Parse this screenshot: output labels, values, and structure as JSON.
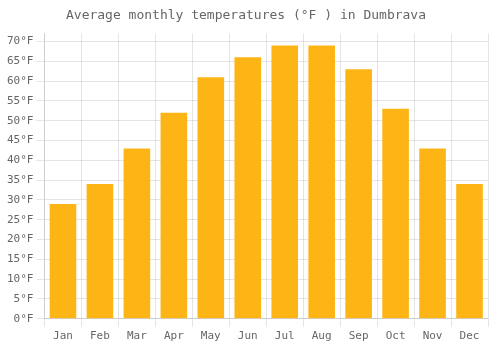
{
  "chart_data": {
    "type": "bar",
    "title": "Average monthly temperatures (°F ) in Dumbrava",
    "categories": [
      "Jan",
      "Feb",
      "Mar",
      "Apr",
      "May",
      "Jun",
      "Jul",
      "Aug",
      "Sep",
      "Oct",
      "Nov",
      "Dec"
    ],
    "values": [
      29,
      34,
      43,
      52,
      61,
      66,
      69,
      69,
      63,
      53,
      43,
      34
    ],
    "color": "#FDB515",
    "ylim": [
      0,
      72
    ],
    "yticks": [
      {
        "value": 0,
        "label": "0°F"
      },
      {
        "value": 5,
        "label": "5°F"
      },
      {
        "value": 10,
        "label": "10°F"
      },
      {
        "value": 15,
        "label": "15°F"
      },
      {
        "value": 20,
        "label": "20°F"
      },
      {
        "value": 25,
        "label": "25°F"
      },
      {
        "value": 30,
        "label": "30°F"
      },
      {
        "value": 35,
        "label": "35°F"
      },
      {
        "value": 40,
        "label": "40°F"
      },
      {
        "value": 45,
        "label": "45°F"
      },
      {
        "value": 50,
        "label": "50°F"
      },
      {
        "value": 55,
        "label": "55°F"
      },
      {
        "value": 60,
        "label": "60°F"
      },
      {
        "value": 65,
        "label": "65°F"
      },
      {
        "value": 70,
        "label": "70°F"
      }
    ],
    "grid": true
  }
}
